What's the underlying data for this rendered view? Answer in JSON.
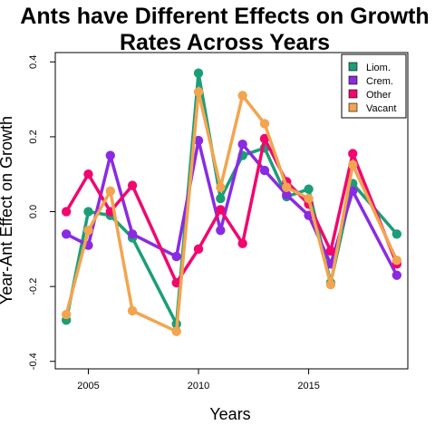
{
  "chart_data": {
    "type": "line",
    "title_lines": [
      "Ants have Different Effects on Growth",
      "Rates Across Years"
    ],
    "xlabel": "Years",
    "ylabel": "Year-Ant Effect on Growth",
    "xlim": [
      2003.5,
      2019.5
    ],
    "ylim": [
      -0.42,
      0.425
    ],
    "x_ticks": [
      2005,
      2010,
      2015
    ],
    "x_tick_labels": [
      "2005",
      "2010",
      "2015"
    ],
    "y_ticks": [
      -0.4,
      -0.2,
      0.0,
      0.2,
      0.4
    ],
    "y_tick_labels": [
      "-0.4",
      "-0.2",
      "0.0",
      "0.2",
      "0.4"
    ],
    "grid": false,
    "legend_position": "top-right",
    "series": [
      {
        "name": "Liom.",
        "color": "#1B9E77",
        "points": [
          [
            2004,
            -0.29
          ],
          [
            2005,
            0.0
          ],
          [
            2006,
            -0.01
          ],
          [
            2007,
            -0.07
          ],
          [
            2009,
            -0.3
          ],
          [
            2010,
            0.37
          ],
          [
            2011,
            0.035
          ],
          [
            2012,
            0.15
          ],
          [
            2013,
            0.17
          ],
          [
            2014,
            0.04
          ],
          [
            2015,
            0.06
          ],
          [
            2016,
            -0.19
          ],
          [
            2017,
            0.075
          ],
          [
            2019,
            -0.06
          ]
        ]
      },
      {
        "name": "Crem.",
        "color": "#8A2BE2",
        "points": [
          [
            2004,
            -0.06
          ],
          [
            2005,
            -0.09
          ],
          [
            2006,
            0.15
          ],
          [
            2007,
            -0.06
          ],
          [
            2009,
            -0.12
          ],
          [
            2010,
            0.19
          ],
          [
            2011,
            -0.05
          ],
          [
            2012,
            0.18
          ],
          [
            2013,
            0.11
          ],
          [
            2014,
            0.045
          ],
          [
            2015,
            -0.01
          ],
          [
            2016,
            -0.14
          ],
          [
            2017,
            0.055
          ],
          [
            2019,
            -0.17
          ]
        ]
      },
      {
        "name": "Other",
        "color": "#F0086E",
        "points": [
          [
            2004,
            0.0
          ],
          [
            2005,
            0.1
          ],
          [
            2006,
            0.0
          ],
          [
            2007,
            0.07
          ],
          [
            2009,
            -0.19
          ],
          [
            2010,
            -0.1
          ],
          [
            2011,
            0.005
          ],
          [
            2012,
            -0.085
          ],
          [
            2013,
            0.195
          ],
          [
            2014,
            0.08
          ],
          [
            2015,
            0.02
          ],
          [
            2016,
            -0.105
          ],
          [
            2017,
            0.155
          ],
          [
            2019,
            -0.14
          ]
        ]
      },
      {
        "name": "Vacant",
        "color": "#F2A54F",
        "points": [
          [
            2004,
            -0.275
          ],
          [
            2005,
            -0.05
          ],
          [
            2006,
            0.055
          ],
          [
            2007,
            -0.265
          ],
          [
            2009,
            -0.32
          ],
          [
            2010,
            0.32
          ],
          [
            2011,
            0.065
          ],
          [
            2012,
            0.31
          ],
          [
            2013,
            0.235
          ],
          [
            2014,
            0.065
          ],
          [
            2015,
            0.035
          ],
          [
            2016,
            -0.195
          ],
          [
            2017,
            0.125
          ],
          [
            2019,
            -0.13
          ]
        ]
      }
    ]
  }
}
